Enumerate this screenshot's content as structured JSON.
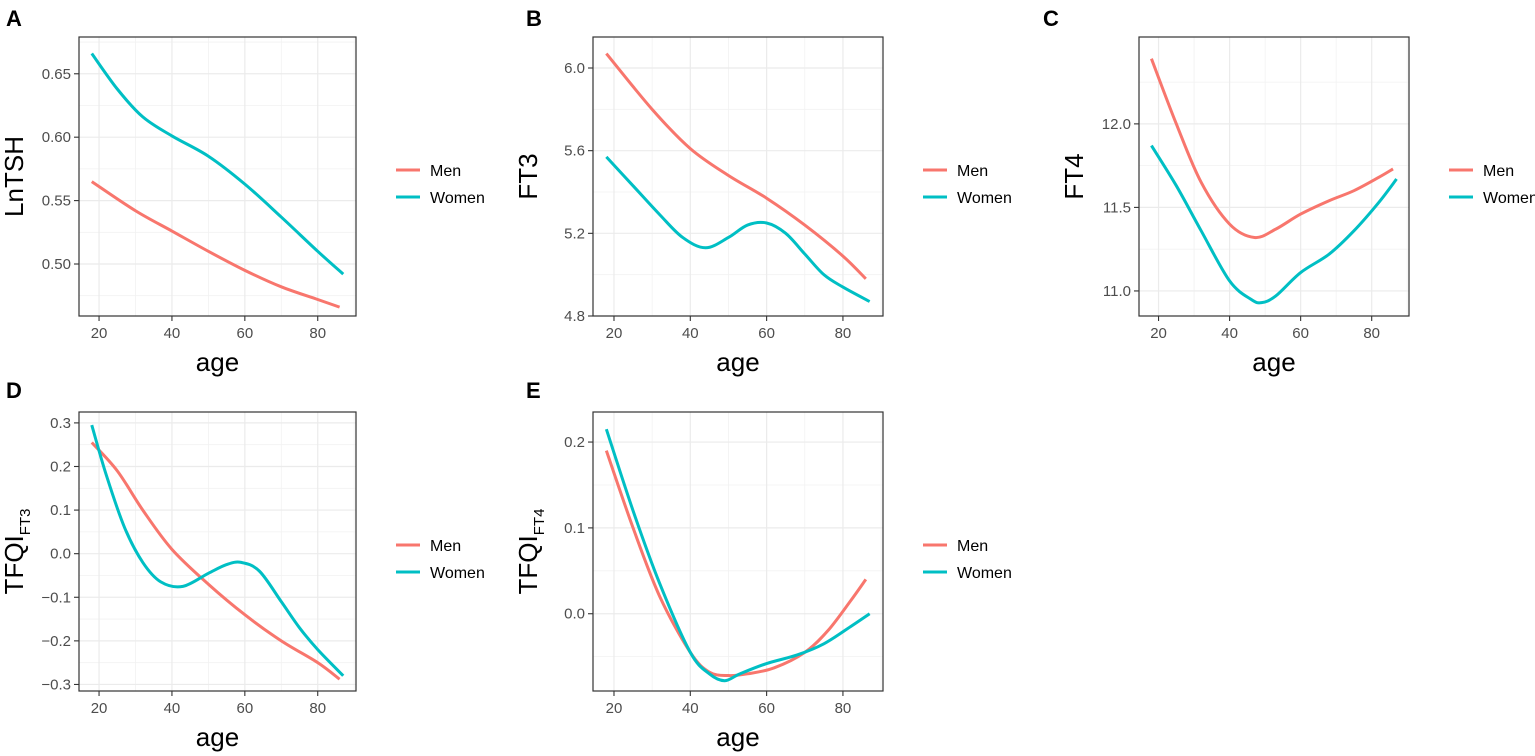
{
  "chart_data": [
    {
      "panel": "A",
      "type": "line",
      "xlabel": "age",
      "ylabel": "LnTSH",
      "ylabel_sub": "",
      "xlim": [
        14.5,
        90.5
      ],
      "ylim": [
        0.459,
        0.679
      ],
      "xticks": [
        20,
        40,
        60,
        80
      ],
      "yticks": [
        0.5,
        0.55,
        0.6,
        0.65
      ],
      "ytick_labels": [
        "0.50",
        "0.55",
        "0.60",
        "0.65"
      ],
      "grid": true,
      "legend_position": "right",
      "series": [
        {
          "name": "Men",
          "color": "#F8766D",
          "x": [
            18,
            30,
            40,
            50,
            60,
            70,
            80,
            86
          ],
          "y": [
            0.565,
            0.542,
            0.526,
            0.51,
            0.495,
            0.482,
            0.472,
            0.466
          ]
        },
        {
          "name": "Women",
          "color": "#00BFC4",
          "x": [
            18,
            25,
            32,
            40,
            50,
            60,
            70,
            80,
            87
          ],
          "y": [
            0.666,
            0.638,
            0.616,
            0.601,
            0.585,
            0.563,
            0.537,
            0.51,
            0.492
          ]
        }
      ]
    },
    {
      "panel": "B",
      "type": "line",
      "xlabel": "age",
      "ylabel": "FT3",
      "ylabel_sub": "",
      "xlim": [
        14.5,
        90.5
      ],
      "ylim": [
        4.8,
        6.15
      ],
      "xticks": [
        20,
        40,
        60,
        80
      ],
      "yticks": [
        4.8,
        5.2,
        5.6,
        6.0
      ],
      "ytick_labels": [
        "4.8",
        "5.2",
        "5.6",
        "6.0"
      ],
      "grid": true,
      "legend_position": "right",
      "series": [
        {
          "name": "Men",
          "color": "#F8766D",
          "x": [
            18,
            30,
            40,
            50,
            60,
            70,
            80,
            86
          ],
          "y": [
            6.07,
            5.8,
            5.61,
            5.48,
            5.37,
            5.24,
            5.09,
            4.98
          ]
        },
        {
          "name": "Women",
          "color": "#00BFC4",
          "x": [
            18,
            25,
            32,
            38,
            44,
            50,
            55,
            60,
            65,
            70,
            75,
            80,
            87
          ],
          "y": [
            5.57,
            5.43,
            5.29,
            5.18,
            5.13,
            5.18,
            5.24,
            5.25,
            5.2,
            5.1,
            5.0,
            4.94,
            4.87
          ]
        }
      ]
    },
    {
      "panel": "C",
      "type": "line",
      "xlabel": "age",
      "ylabel": "FT4",
      "ylabel_sub": "",
      "xlim": [
        14.5,
        90.5
      ],
      "ylim": [
        10.85,
        12.52
      ],
      "xticks": [
        20,
        40,
        60,
        80
      ],
      "yticks": [
        11.0,
        11.5,
        12.0
      ],
      "ytick_labels": [
        "11.0",
        "11.5",
        "12.0"
      ],
      "grid": true,
      "legend_position": "right",
      "series": [
        {
          "name": "Men",
          "color": "#F8766D",
          "x": [
            18,
            25,
            32,
            40,
            47,
            53,
            60,
            68,
            75,
            82,
            86
          ],
          "y": [
            12.39,
            12.0,
            11.65,
            11.4,
            11.32,
            11.37,
            11.46,
            11.54,
            11.6,
            11.68,
            11.73
          ]
        },
        {
          "name": "Women",
          "color": "#00BFC4",
          "x": [
            18,
            25,
            32,
            40,
            46,
            49,
            53,
            60,
            68,
            75,
            82,
            87
          ],
          "y": [
            11.87,
            11.63,
            11.36,
            11.06,
            10.95,
            10.93,
            10.97,
            11.11,
            11.22,
            11.36,
            11.53,
            11.67
          ]
        }
      ]
    },
    {
      "panel": "D",
      "type": "line",
      "xlabel": "age",
      "ylabel": "TFQI",
      "ylabel_sub": "FT3",
      "xlim": [
        14.5,
        90.5
      ],
      "ylim": [
        -0.315,
        0.325
      ],
      "xticks": [
        20,
        40,
        60,
        80
      ],
      "yticks": [
        -0.3,
        -0.2,
        -0.1,
        0.0,
        0.1,
        0.2,
        0.3
      ],
      "ytick_labels": [
        "−0.3",
        "−0.2",
        "−0.1",
        "0.0",
        "0.1",
        "0.2",
        "0.3"
      ],
      "grid": true,
      "legend_position": "right",
      "series": [
        {
          "name": "Men",
          "color": "#F8766D",
          "x": [
            18,
            25,
            32,
            40,
            50,
            60,
            70,
            80,
            86
          ],
          "y": [
            0.255,
            0.19,
            0.1,
            0.01,
            -0.07,
            -0.14,
            -0.2,
            -0.25,
            -0.288
          ]
        },
        {
          "name": "Women",
          "color": "#00BFC4",
          "x": [
            18,
            22,
            27,
            32,
            37,
            43,
            50,
            55,
            59,
            64,
            70,
            75,
            80,
            87
          ],
          "y": [
            0.295,
            0.18,
            0.06,
            -0.02,
            -0.065,
            -0.075,
            -0.045,
            -0.025,
            -0.02,
            -0.04,
            -0.11,
            -0.17,
            -0.22,
            -0.28
          ]
        }
      ]
    },
    {
      "panel": "E",
      "type": "line",
      "xlabel": "age",
      "ylabel": "TFQI",
      "ylabel_sub": "FT4",
      "xlim": [
        14.5,
        90.5
      ],
      "ylim": [
        -0.09,
        0.235
      ],
      "xticks": [
        20,
        40,
        60,
        80
      ],
      "yticks": [
        0.0,
        0.1,
        0.2
      ],
      "ytick_labels": [
        "0.0",
        "0.1",
        "0.2"
      ],
      "grid": true,
      "legend_position": "right",
      "series": [
        {
          "name": "Men",
          "color": "#F8766D",
          "x": [
            18,
            25,
            32,
            40,
            45,
            50,
            55,
            62,
            70,
            76,
            82,
            86
          ],
          "y": [
            0.19,
            0.1,
            0.02,
            -0.045,
            -0.068,
            -0.072,
            -0.07,
            -0.063,
            -0.045,
            -0.02,
            0.015,
            0.04
          ]
        },
        {
          "name": "Women",
          "color": "#00BFC4",
          "x": [
            18,
            25,
            32,
            40,
            45,
            49,
            53,
            60,
            68,
            75,
            82,
            87
          ],
          "y": [
            0.215,
            0.12,
            0.035,
            -0.045,
            -0.07,
            -0.078,
            -0.07,
            -0.058,
            -0.048,
            -0.035,
            -0.015,
            0.0
          ]
        }
      ]
    }
  ]
}
